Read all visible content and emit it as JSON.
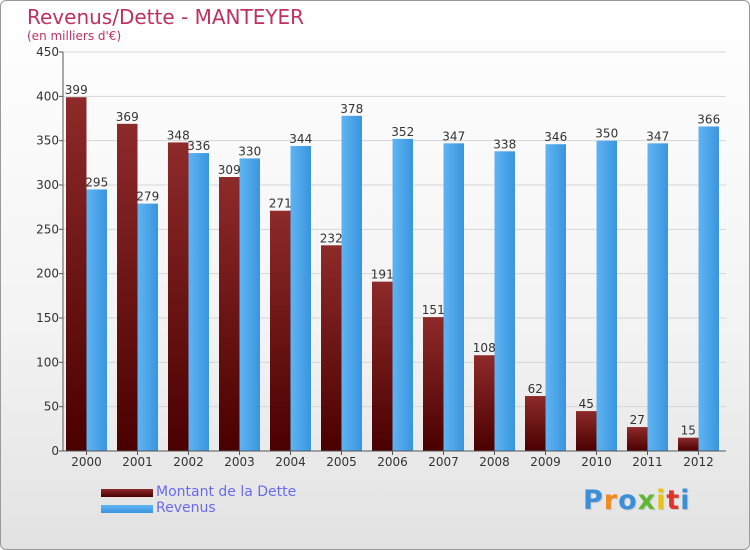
{
  "chart_data": {
    "type": "bar",
    "title": "Revenus/Dette - MANTEYER",
    "subtitle": "(en milliers d'€)",
    "categories": [
      "2000",
      "2001",
      "2002",
      "2003",
      "2004",
      "2005",
      "2006",
      "2007",
      "2008",
      "2009",
      "2010",
      "2011",
      "2012"
    ],
    "series": [
      {
        "name": "Montant de la Dette",
        "color": "#7a1414",
        "values": [
          399,
          369,
          348,
          309,
          271,
          232,
          191,
          151,
          108,
          62,
          45,
          27,
          15
        ]
      },
      {
        "name": "Revenus",
        "color": "#3d9ee6",
        "values": [
          295,
          279,
          336,
          330,
          344,
          378,
          352,
          347,
          338,
          346,
          350,
          347,
          366
        ]
      }
    ],
    "ylim": [
      0,
      450
    ],
    "yticks": [
      0,
      50,
      100,
      150,
      200,
      250,
      300,
      350,
      400,
      450
    ],
    "grid": true,
    "legend_position": "bottom-left"
  },
  "logo": {
    "text": "Proxiti",
    "colors": [
      "#3b8fd6",
      "#f08a1c",
      "#3b8fd6",
      "#5fb831",
      "#e8c21a",
      "#e0342a",
      "#3b8fd6"
    ]
  }
}
